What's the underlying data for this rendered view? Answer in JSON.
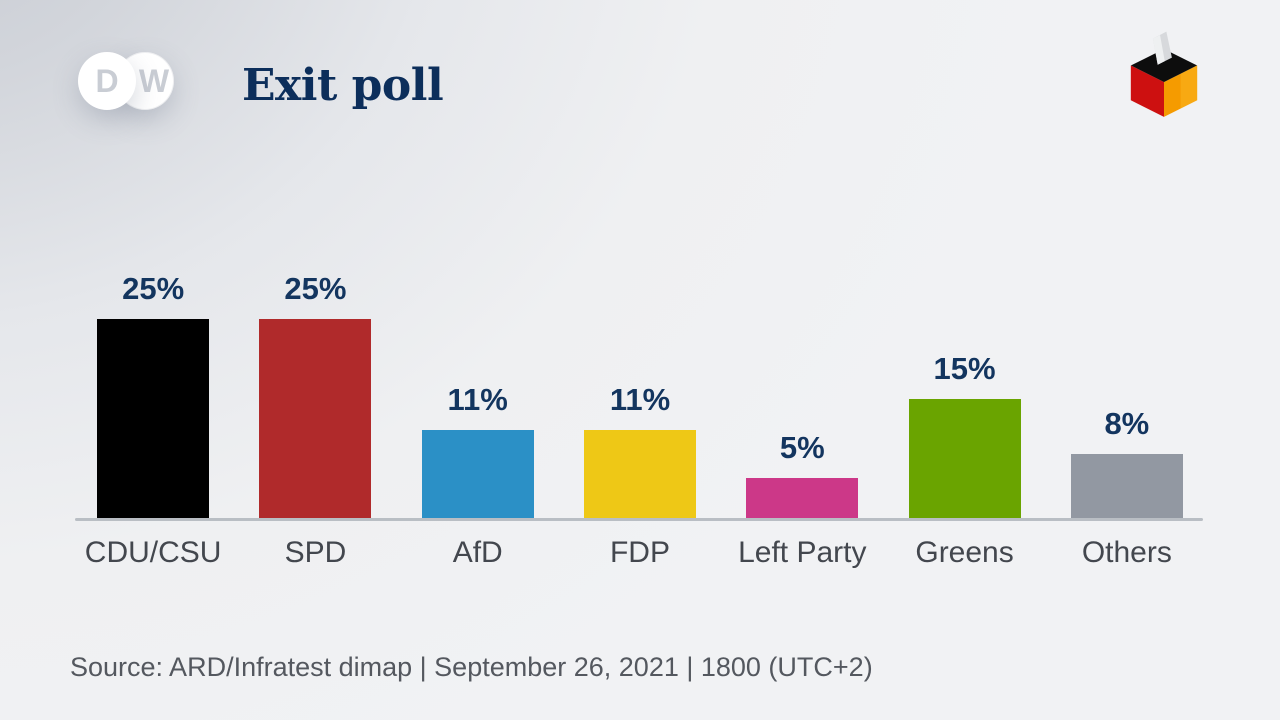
{
  "header": {
    "title": "Exit poll",
    "logo": {
      "letter_d": "D",
      "letter_w": "W"
    }
  },
  "icons": {
    "dw_logo": "dw-logo",
    "ballot_box": {
      "name": "german-ballot-box-icon",
      "top_color": "#0d0d0d",
      "left_color": "#e01414",
      "right_color": "#f59b00",
      "paper_color": "#d7d9dc"
    }
  },
  "chart_data": {
    "type": "bar",
    "title": "Exit poll",
    "categories": [
      "CDU/CSU",
      "SPD",
      "AfD",
      "FDP",
      "Left Party",
      "Greens",
      "Others"
    ],
    "values": [
      25,
      25,
      11,
      11,
      5,
      15,
      8
    ],
    "value_labels": [
      "25%",
      "25%",
      "11%",
      "11%",
      "5%",
      "15%",
      "8%"
    ],
    "bar_colors": [
      "#000000",
      "#b02a2b",
      "#2b90c6",
      "#eec816",
      "#cc3888",
      "#6aa400",
      "#9298a2"
    ],
    "unit": "%",
    "ylim": [
      0,
      26
    ],
    "grid": false,
    "legend": false,
    "value_label_color": "#13355f",
    "category_label_color": "#43474e",
    "axis_line_color": "#b9bec4"
  },
  "footer": {
    "source": "Source: ARD/Infratest dimap | September 26, 2021 | 1800 (UTC+2)"
  },
  "colors": {
    "title": "#0c2e5b",
    "background_dark": "#c6cad2",
    "background_light": "#f1f2f4"
  }
}
